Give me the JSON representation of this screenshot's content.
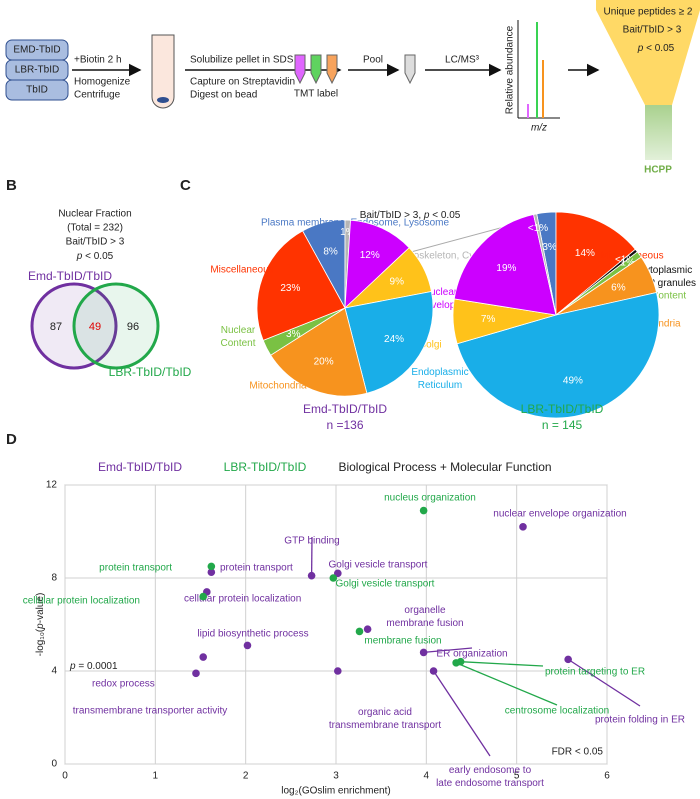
{
  "figure": {
    "panel_labels": [
      "A",
      "B",
      "C",
      "D"
    ],
    "workflow": {
      "baits": [
        "EMD-TbID",
        "LBR-TbID",
        "TbID"
      ],
      "step1": [
        "+Biotin 2 h",
        "Homogenize",
        "Centrifuge"
      ],
      "step2_top": "Solubilize pellet in SDS",
      "step2_bottom": [
        "Capture on Streptavidin",
        "Digest on bead"
      ],
      "tmt": "TMT label",
      "pool": "Pool",
      "ms": "LC/MS³",
      "spectrum_y": "Relative abundance",
      "spectrum_x": "m/z",
      "filters": [
        "Unique peptides ≥ 2",
        "Bait/TbID > 3",
        "p < 0.05"
      ],
      "output": "HCPP"
    },
    "venn": {
      "header": [
        "Nuclear Fraction",
        "(Total = 232)",
        "Bait/TbID > 3",
        "p < 0.05"
      ],
      "set_a": "Emd-TbID/TbID",
      "set_b": "LBR-TbID/TbID",
      "only_a": 87,
      "both": 49,
      "only_b": 96
    },
    "pie_header": "Bait/TbID > 3, p < 0.05"
  },
  "chart_data": [
    {
      "type": "pie",
      "title": "Emd-TbID/TbID",
      "subtitle": "n =136",
      "categories": [
        "Plasma membrane, Endosome, Lysosome",
        "Cytoskeleton, Cytosol",
        "Nuclear Envelope",
        "Golgi",
        "Endoplasmic Reticulum",
        "Mitochondria",
        "Nuclear Content",
        "Miscellaneous"
      ],
      "values": [
        8,
        1,
        12,
        9,
        24,
        20,
        3,
        23
      ],
      "value_labels": [
        "8%",
        "1%",
        "12%",
        "9%",
        "24%",
        "20%",
        "3%",
        "23%"
      ],
      "colors": [
        "#4a78c4",
        "#b5b5b5",
        "#cc00ff",
        "#ffc21a",
        "#19aee8",
        "#f7931e",
        "#7ac143",
        "#ff3300"
      ]
    },
    {
      "type": "pie",
      "title": "LBR-TbID/TbID",
      "subtitle": "n = 145",
      "categories": [
        null,
        "Miscellaneous",
        "Cytoplasmic RNP granules",
        "Nuclear Content",
        "Mitochondria",
        null,
        null,
        null,
        null
      ],
      "values": [
        3,
        14,
        0.5,
        1,
        6,
        49,
        7,
        19,
        0.5
      ],
      "value_labels": [
        "3%",
        "14%",
        "<1%",
        "1%",
        "6%",
        "49%",
        "7%",
        "19%",
        "<1%"
      ],
      "colors": [
        "#4a78c4",
        "#ff3300",
        "#111111",
        "#7ac143",
        "#f7931e",
        "#19aee8",
        "#ffc21a",
        "#cc00ff",
        "#b5b5b5"
      ]
    },
    {
      "type": "scatter",
      "title": "Biological Process + Molecular Function",
      "xlabel": "log₂(GOslim enrichment)",
      "ylabel": "-log₁₀(p-value)",
      "xlim": [
        0,
        6
      ],
      "ylim": [
        0,
        12
      ],
      "xticks": [
        0,
        1,
        2,
        3,
        4,
        5,
        6
      ],
      "yticks": [
        0,
        4,
        8,
        12
      ],
      "grid": true,
      "annotations": [
        "p = 0.0001",
        "FDR < 0.05"
      ],
      "series": [
        {
          "name": "Emd-TbID/TbID",
          "color": "#7030a0",
          "x": [
            5.07,
            2.73,
            3.02,
            1.62,
            1.57,
            3.35,
            2.02,
            1.53,
            1.45,
            3.02,
            3.97,
            4.08,
            5.57
          ],
          "values": [
            10.2,
            8.1,
            8.2,
            8.25,
            7.4,
            5.8,
            5.1,
            4.6,
            3.9,
            4.0,
            4.8,
            4.0,
            4.5
          ],
          "labels": [
            "nuclear envelope organization",
            "GTP binding",
            "Golgi vesicle transport",
            "protein transport",
            "cellular protein localization",
            "organelle membrane fusion",
            "lipid biosynthetic process",
            "redox process",
            "transmembrane transporter activity",
            "organic acid transmembrane transport",
            "ER organization",
            "early endosome to late endosome transport",
            "protein folding in ER"
          ]
        },
        {
          "name": "LBR-TbID/TbID",
          "color": "#22a84a",
          "x": [
            3.97,
            1.62,
            2.97,
            1.53,
            3.26,
            4.38,
            4.33
          ],
          "values": [
            10.9,
            8.5,
            8.0,
            7.2,
            5.7,
            4.4,
            4.35
          ],
          "labels": [
            "nucleus organization",
            "protein transport",
            "Golgi vesicle transport",
            "cellular protein localization",
            "membrane fusion",
            "protein targeting to ER",
            "centrosome localization"
          ]
        }
      ]
    }
  ]
}
